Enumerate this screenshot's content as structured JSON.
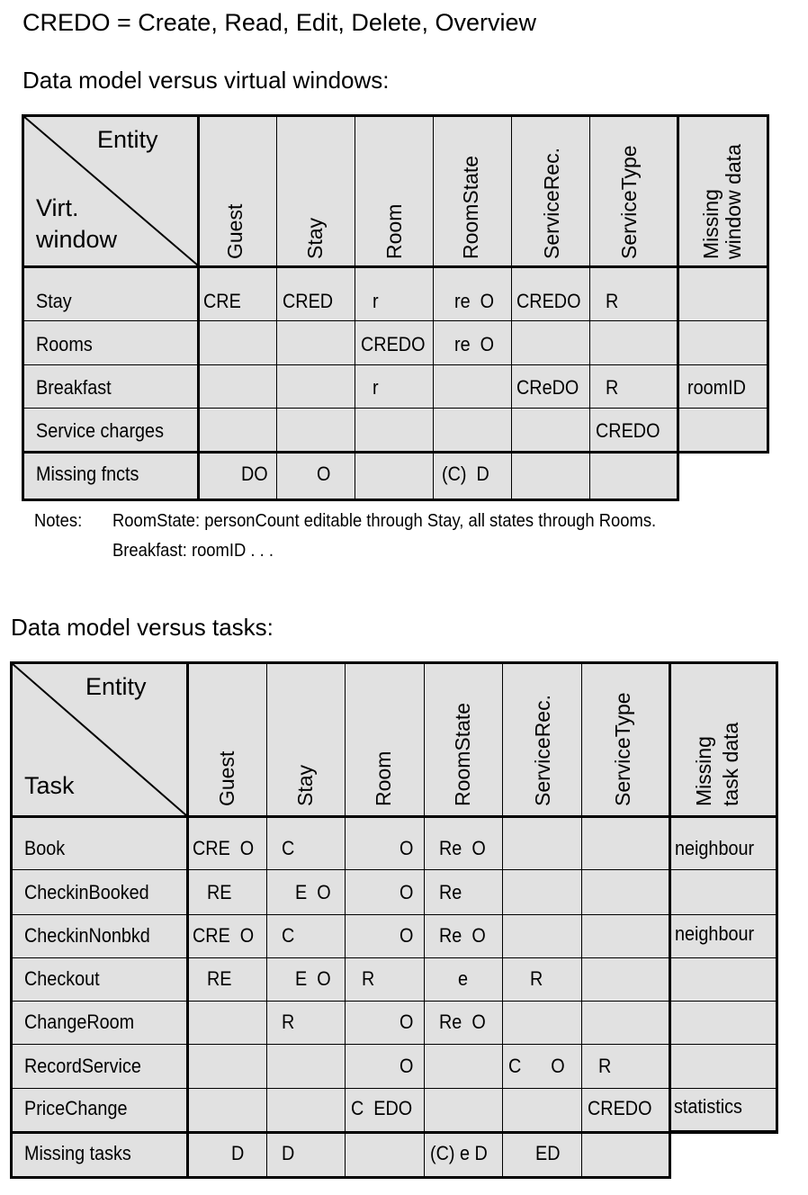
{
  "header": {
    "title": "CREDO = Create, Read, Edit, Delete, Overview"
  },
  "table1": {
    "heading": "Data model versus virtual windows:",
    "corner_entity": "Entity",
    "corner_row_line1": "Virt.",
    "corner_row_line2": "window",
    "columns": [
      "Guest",
      "Stay",
      "Room",
      "RoomState",
      "ServiceRec.",
      "ServiceType"
    ],
    "missing_col_line1": "Missing",
    "missing_col_line2": "window data",
    "rows": [
      {
        "label": "Stay",
        "cells": [
          "CRE",
          "CRED",
          "r",
          "re  O",
          "CREDO",
          "R"
        ],
        "missing": ""
      },
      {
        "label": "Rooms",
        "cells": [
          "",
          "",
          "CREDO",
          "re  O",
          "",
          ""
        ],
        "missing": ""
      },
      {
        "label": "Breakfast",
        "cells": [
          "",
          "",
          "r",
          "",
          "CReDO",
          "R"
        ],
        "missing": "roomID"
      },
      {
        "label": "Service charges",
        "cells": [
          "",
          "",
          "",
          "",
          "",
          "CREDO"
        ],
        "missing": ""
      }
    ],
    "missing_row": {
      "label": "Missing fncts",
      "cells": [
        "DO",
        "O",
        "",
        "(C)  D",
        "",
        ""
      ]
    },
    "notes_label": "Notes:",
    "notes_line1": "RoomState: personCount editable through Stay, all states through Rooms.",
    "notes_line2": "Breakfast: roomID . . ."
  },
  "table2": {
    "heading": "Data model versus tasks:",
    "corner_entity": "Entity",
    "corner_row": "Task",
    "columns": [
      "Guest",
      "Stay",
      "Room",
      "RoomState",
      "ServiceRec.",
      "ServiceType"
    ],
    "missing_col_line1": "Missing",
    "missing_col_line2": "task data",
    "rows": [
      {
        "label": "Book",
        "cells": [
          "CRE  O",
          "C",
          "O",
          "Re  O",
          "",
          ""
        ],
        "missing": "neighbour"
      },
      {
        "label": "CheckinBooked",
        "cells": [
          "RE",
          "E  O",
          "O",
          "Re",
          "",
          ""
        ],
        "missing": ""
      },
      {
        "label": "CheckinNonbkd",
        "cells": [
          "CRE  O",
          "C",
          "O",
          "Re  O",
          "",
          ""
        ],
        "missing": "neighbour"
      },
      {
        "label": "Checkout",
        "cells": [
          "RE",
          "E  O",
          "R",
          "e",
          "R",
          ""
        ],
        "missing": ""
      },
      {
        "label": "ChangeRoom",
        "cells": [
          "",
          "R",
          "O",
          "Re  O",
          "",
          ""
        ],
        "missing": ""
      },
      {
        "label": "RecordService",
        "cells": [
          "",
          "",
          "O",
          "",
          "C      O",
          "R"
        ],
        "missing": ""
      },
      {
        "label": "PriceChange",
        "cells": [
          "",
          "",
          "C  EDO",
          "",
          "",
          "CREDO"
        ],
        "missing": "statistics"
      }
    ],
    "missing_row": {
      "label": "Missing tasks",
      "cells": [
        "D",
        "D",
        "",
        "(C) e D",
        "ED",
        ""
      ]
    }
  }
}
